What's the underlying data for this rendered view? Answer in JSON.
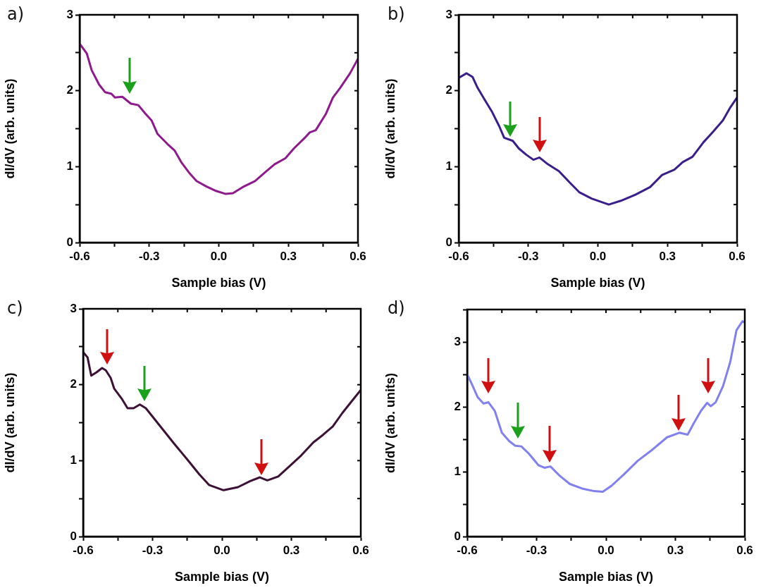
{
  "chart_data": [
    {
      "type": "line",
      "title": "a)",
      "xlabel": "Sample bias (V)",
      "ylabel": "dI/dV (arb. units)",
      "xlim": [
        -0.6,
        0.6
      ],
      "ylim": [
        0,
        3
      ],
      "xticks": [
        -0.6,
        {
          "value": -0.45,
          "label": null
        },
        -0.3,
        {
          "value": -0.15,
          "label": null
        },
        {
          "value": 0,
          "label": "0.0"
        },
        {
          "value": 0.15,
          "label": null
        },
        0.3,
        {
          "value": 0.45,
          "label": null
        },
        0.6
      ],
      "yticks": [
        0,
        {
          "value": 0.5,
          "label": null
        },
        1,
        {
          "value": 1.5,
          "label": null
        },
        2,
        {
          "value": 2.5,
          "label": null
        },
        3
      ],
      "grid": false,
      "legend": false,
      "marker": "none",
      "line_style": "solid",
      "series": [
        {
          "color": "#8e1a8e",
          "x": [
            -0.6,
            -0.569,
            -0.548,
            -0.516,
            -0.49,
            -0.463,
            -0.448,
            -0.416,
            -0.379,
            -0.347,
            -0.317,
            -0.29,
            -0.264,
            -0.222,
            -0.19,
            -0.16,
            -0.128,
            -0.096,
            -0.054,
            -0.012,
            0.03,
            0.061,
            0.103,
            0.156,
            0.198,
            0.24,
            0.287,
            0.324,
            0.371,
            0.392,
            0.418,
            0.461,
            0.492,
            0.524,
            0.566,
            0.6
          ],
          "values": [
            2.62,
            2.49,
            2.27,
            2.08,
            1.98,
            1.96,
            1.91,
            1.92,
            1.83,
            1.81,
            1.7,
            1.61,
            1.43,
            1.3,
            1.21,
            1.05,
            0.92,
            0.81,
            0.74,
            0.68,
            0.64,
            0.65,
            0.73,
            0.81,
            0.92,
            1.03,
            1.11,
            1.24,
            1.38,
            1.45,
            1.48,
            1.69,
            1.91,
            2.04,
            2.23,
            2.42
          ]
        }
      ]
    },
    {
      "type": "line",
      "title": "b)",
      "xlabel": "Sample bias (V)",
      "ylabel": "dI/dV (arb. units)",
      "xlim": [
        -0.6,
        0.6
      ],
      "ylim": [
        0,
        3
      ],
      "xticks": [
        -0.6,
        {
          "value": -0.45,
          "label": null
        },
        -0.3,
        {
          "value": -0.15,
          "label": null
        },
        {
          "value": 0,
          "label": "0.0"
        },
        {
          "value": 0.15,
          "label": null
        },
        0.3,
        {
          "value": 0.45,
          "label": null
        },
        0.6
      ],
      "yticks": [
        0,
        {
          "value": 0.5,
          "label": null
        },
        1,
        {
          "value": 1.5,
          "label": null
        },
        2,
        {
          "value": 2.5,
          "label": null
        },
        3
      ],
      "grid": false,
      "legend": false,
      "marker": "none",
      "line_style": "solid",
      "series": [
        {
          "color": "#3a1f8c",
          "x": [
            -0.6,
            -0.566,
            -0.54,
            -0.519,
            -0.488,
            -0.456,
            -0.425,
            -0.404,
            -0.367,
            -0.341,
            -0.31,
            -0.278,
            -0.252,
            -0.215,
            -0.168,
            -0.121,
            -0.079,
            -0.027,
            0.047,
            0.099,
            0.162,
            0.225,
            0.277,
            0.33,
            0.366,
            0.408,
            0.455,
            0.497,
            0.539,
            0.571,
            0.6
          ],
          "values": [
            2.17,
            2.23,
            2.18,
            2.04,
            1.88,
            1.72,
            1.53,
            1.38,
            1.34,
            1.24,
            1.16,
            1.09,
            1.12,
            1.03,
            0.94,
            0.79,
            0.66,
            0.58,
            0.5,
            0.55,
            0.63,
            0.73,
            0.89,
            0.96,
            1.06,
            1.13,
            1.32,
            1.46,
            1.61,
            1.78,
            1.91
          ]
        }
      ]
    },
    {
      "type": "line",
      "title": "c)",
      "xlabel": "Sample bias (V)",
      "ylabel": "dI/dV (arb. units)",
      "xlim": [
        -0.6,
        0.6
      ],
      "ylim": [
        0,
        3
      ],
      "xticks": [
        -0.6,
        {
          "value": -0.45,
          "label": null
        },
        -0.3,
        {
          "value": -0.15,
          "label": null
        },
        {
          "value": 0,
          "label": "0.0"
        },
        {
          "value": 0.15,
          "label": null
        },
        0.3,
        {
          "value": 0.45,
          "label": null
        },
        0.6
      ],
      "yticks": [
        0,
        {
          "value": 0.5,
          "label": null
        },
        1,
        {
          "value": 1.5,
          "label": null
        },
        2,
        {
          "value": 2.5,
          "label": null
        },
        3
      ],
      "grid": false,
      "legend": false,
      "marker": "none",
      "line_style": "solid",
      "series": [
        {
          "color": "#3d1036",
          "x": [
            -0.6,
            -0.581,
            -0.565,
            -0.544,
            -0.518,
            -0.502,
            -0.481,
            -0.466,
            -0.434,
            -0.408,
            -0.382,
            -0.355,
            -0.329,
            -0.287,
            -0.245,
            -0.203,
            -0.151,
            -0.098,
            -0.056,
            0.007,
            0.069,
            0.122,
            0.164,
            0.196,
            0.243,
            0.29,
            0.343,
            0.395,
            0.437,
            0.479,
            0.521,
            0.563,
            0.6
          ],
          "values": [
            2.43,
            2.36,
            2.12,
            2.16,
            2.22,
            2.19,
            2.09,
            1.95,
            1.82,
            1.69,
            1.69,
            1.74,
            1.69,
            1.53,
            1.37,
            1.21,
            1.02,
            0.82,
            0.68,
            0.61,
            0.65,
            0.73,
            0.78,
            0.74,
            0.79,
            0.92,
            1.07,
            1.24,
            1.34,
            1.45,
            1.63,
            1.79,
            1.93
          ]
        }
      ]
    },
    {
      "type": "line",
      "title": "d)",
      "xlabel": "Sample bias (V)",
      "ylabel": "dI/dV (arb. units)",
      "xlim": [
        -0.6,
        0.6
      ],
      "ylim": [
        0,
        3.5
      ],
      "xticks": [
        -0.6,
        {
          "value": -0.45,
          "label": null
        },
        -0.3,
        {
          "value": -0.15,
          "label": null
        },
        {
          "value": 0,
          "label": "0.0"
        },
        {
          "value": 0.15,
          "label": null
        },
        0.3,
        {
          "value": 0.45,
          "label": null
        },
        0.6
      ],
      "yticks": [
        0,
        {
          "value": 0.5,
          "label": null
        },
        1,
        {
          "value": 1.5,
          "label": null
        },
        2,
        {
          "value": 2.5,
          "label": null
        },
        3,
        {
          "value": 3.5,
          "label": null
        }
      ],
      "grid": false,
      "legend": false,
      "marker": "none",
      "line_style": "solid",
      "series": [
        {
          "color": "#8080f0",
          "x": [
            -0.6,
            -0.581,
            -0.555,
            -0.529,
            -0.508,
            -0.481,
            -0.45,
            -0.418,
            -0.392,
            -0.366,
            -0.334,
            -0.292,
            -0.266,
            -0.24,
            -0.198,
            -0.156,
            -0.103,
            -0.051,
            -0.014,
            0.023,
            0.075,
            0.138,
            0.201,
            0.264,
            0.317,
            0.353,
            0.38,
            0.411,
            0.437,
            0.453,
            0.474,
            0.506,
            0.537,
            0.564,
            0.59,
            0.6
          ],
          "values": [
            2.5,
            2.36,
            2.15,
            2.05,
            2.07,
            1.94,
            1.6,
            1.47,
            1.4,
            1.39,
            1.28,
            1.1,
            1.06,
            1.08,
            0.93,
            0.81,
            0.74,
            0.7,
            0.69,
            0.78,
            0.95,
            1.17,
            1.34,
            1.53,
            1.6,
            1.57,
            1.75,
            1.94,
            2.06,
            2.01,
            2.07,
            2.32,
            2.69,
            3.18,
            3.32,
            3.3
          ]
        }
      ]
    }
  ]
}
